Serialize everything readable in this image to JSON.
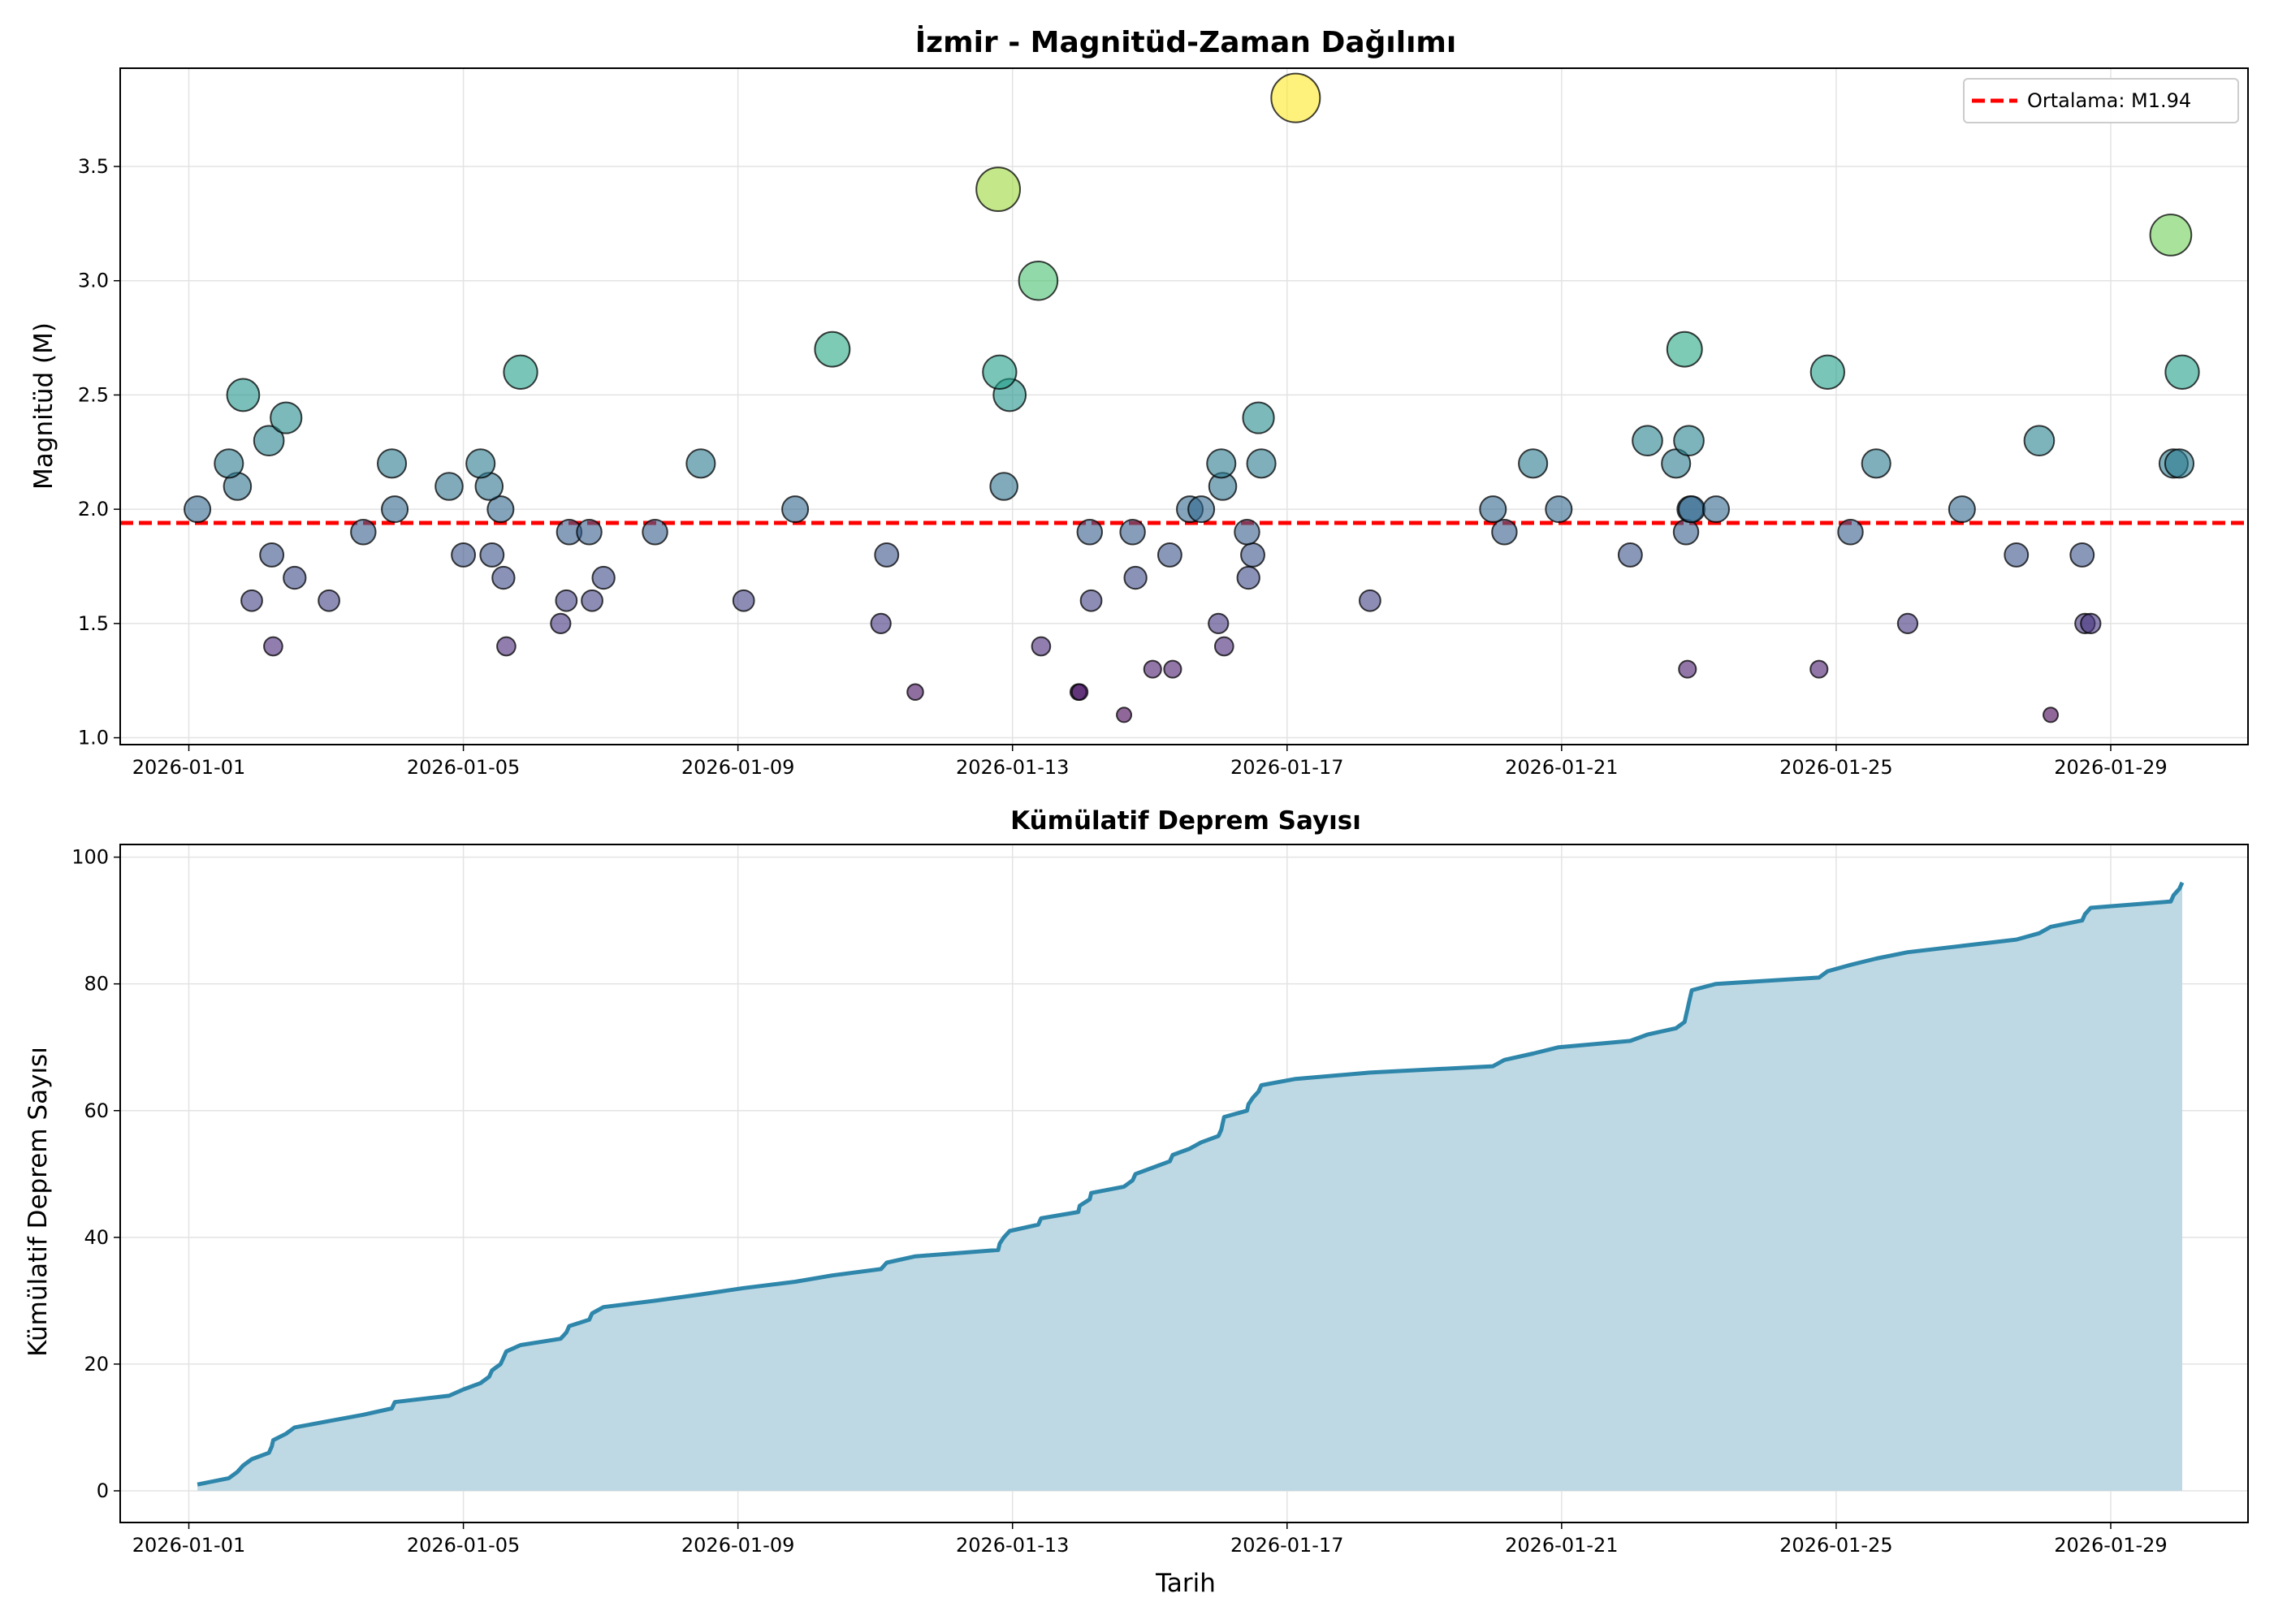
{
  "chart_data": [
    {
      "type": "scatter",
      "title": "İzmir - Magnitüd-Zaman Dağılımı",
      "xlabel": "",
      "ylabel": "Magnitüd (M)",
      "xlim": [
        "2025-12-31T00:00",
        "2026-01-31T00:00"
      ],
      "ylim": [
        0.97,
        3.93
      ],
      "xticks": [
        "2026-01-01",
        "2026-01-05",
        "2026-01-09",
        "2026-01-13",
        "2026-01-17",
        "2026-01-21",
        "2026-01-25",
        "2026-01-29"
      ],
      "yticks": [
        "1.0",
        "1.5",
        "2.0",
        "2.5",
        "3.0",
        "3.5"
      ],
      "grid": true,
      "legend": {
        "position": "top-right",
        "entries": [
          "Ortalama: M1.94"
        ]
      },
      "mean_line": {
        "value": 1.94,
        "color": "#ff0000",
        "style": "dashed"
      },
      "colormap": "viridis",
      "marker_size_encodes": "magnitude",
      "points": [
        {
          "t": "2026-01-01T03:00",
          "m": 2.0
        },
        {
          "t": "2026-01-01T14:00",
          "m": 2.2
        },
        {
          "t": "2026-01-01T17:00",
          "m": 2.1
        },
        {
          "t": "2026-01-01T19:00",
          "m": 2.5
        },
        {
          "t": "2026-01-01T22:00",
          "m": 1.6
        },
        {
          "t": "2026-01-02T04:00",
          "m": 2.3
        },
        {
          "t": "2026-01-02T05:00",
          "m": 1.8
        },
        {
          "t": "2026-01-02T05:30",
          "m": 1.4
        },
        {
          "t": "2026-01-02T10:00",
          "m": 2.4
        },
        {
          "t": "2026-01-02T13:00",
          "m": 1.7
        },
        {
          "t": "2026-01-03T01:00",
          "m": 1.6
        },
        {
          "t": "2026-01-03T13:00",
          "m": 1.9
        },
        {
          "t": "2026-01-03T23:00",
          "m": 2.2
        },
        {
          "t": "2026-01-04T00:00",
          "m": 2.0
        },
        {
          "t": "2026-01-04T19:00",
          "m": 2.1
        },
        {
          "t": "2026-01-05T00:00",
          "m": 1.8
        },
        {
          "t": "2026-01-05T06:00",
          "m": 2.2
        },
        {
          "t": "2026-01-05T09:00",
          "m": 2.1
        },
        {
          "t": "2026-01-05T10:00",
          "m": 1.8
        },
        {
          "t": "2026-01-05T13:00",
          "m": 2.0
        },
        {
          "t": "2026-01-05T14:00",
          "m": 1.7
        },
        {
          "t": "2026-01-05T15:00",
          "m": 1.4
        },
        {
          "t": "2026-01-05T20:00",
          "m": 2.6
        },
        {
          "t": "2026-01-06T10:00",
          "m": 1.5
        },
        {
          "t": "2026-01-06T12:00",
          "m": 1.6
        },
        {
          "t": "2026-01-06T13:00",
          "m": 1.9
        },
        {
          "t": "2026-01-06T20:00",
          "m": 1.9
        },
        {
          "t": "2026-01-06T21:00",
          "m": 1.6
        },
        {
          "t": "2026-01-07T01:00",
          "m": 1.7
        },
        {
          "t": "2026-01-07T19:00",
          "m": 1.9
        },
        {
          "t": "2026-01-08T11:00",
          "m": 2.2
        },
        {
          "t": "2026-01-09T02:00",
          "m": 1.6
        },
        {
          "t": "2026-01-09T20:00",
          "m": 2.0
        },
        {
          "t": "2026-01-10T09:00",
          "m": 2.7
        },
        {
          "t": "2026-01-11T02:00",
          "m": 1.5
        },
        {
          "t": "2026-01-11T04:00",
          "m": 1.8
        },
        {
          "t": "2026-01-11T14:00",
          "m": 1.2
        },
        {
          "t": "2026-01-12T19:00",
          "m": 3.4
        },
        {
          "t": "2026-01-12T19:30",
          "m": 2.6
        },
        {
          "t": "2026-01-12T21:00",
          "m": 2.1
        },
        {
          "t": "2026-01-12T23:00",
          "m": 2.5
        },
        {
          "t": "2026-01-13T09:00",
          "m": 3.0
        },
        {
          "t": "2026-01-13T10:00",
          "m": 1.4
        },
        {
          "t": "2026-01-13T23:00",
          "m": 1.2
        },
        {
          "t": "2026-01-13T23:30",
          "m": 1.2
        },
        {
          "t": "2026-01-14T03:00",
          "m": 1.9
        },
        {
          "t": "2026-01-14T03:30",
          "m": 1.6
        },
        {
          "t": "2026-01-14T15:00",
          "m": 1.1
        },
        {
          "t": "2026-01-14T18:00",
          "m": 1.9
        },
        {
          "t": "2026-01-14T19:00",
          "m": 1.7
        },
        {
          "t": "2026-01-15T01:00",
          "m": 1.3
        },
        {
          "t": "2026-01-15T07:00",
          "m": 1.8
        },
        {
          "t": "2026-01-15T08:00",
          "m": 1.3
        },
        {
          "t": "2026-01-15T14:00",
          "m": 2.0
        },
        {
          "t": "2026-01-15T18:00",
          "m": 2.0
        },
        {
          "t": "2026-01-16T00:00",
          "m": 1.5
        },
        {
          "t": "2026-01-16T01:00",
          "m": 2.2
        },
        {
          "t": "2026-01-16T01:30",
          "m": 2.1
        },
        {
          "t": "2026-01-16T02:00",
          "m": 1.4
        },
        {
          "t": "2026-01-16T10:00",
          "m": 1.9
        },
        {
          "t": "2026-01-16T10:30",
          "m": 1.7
        },
        {
          "t": "2026-01-16T12:00",
          "m": 1.8
        },
        {
          "t": "2026-01-16T14:00",
          "m": 2.4
        },
        {
          "t": "2026-01-16T15:00",
          "m": 2.2
        },
        {
          "t": "2026-01-17T03:00",
          "m": 3.8
        },
        {
          "t": "2026-01-18T05:00",
          "m": 1.6
        },
        {
          "t": "2026-01-20T00:00",
          "m": 2.0
        },
        {
          "t": "2026-01-20T04:00",
          "m": 1.9
        },
        {
          "t": "2026-01-20T14:00",
          "m": 2.2
        },
        {
          "t": "2026-01-20T23:00",
          "m": 2.0
        },
        {
          "t": "2026-01-22T00:00",
          "m": 1.8
        },
        {
          "t": "2026-01-22T06:00",
          "m": 2.3
        },
        {
          "t": "2026-01-22T16:00",
          "m": 2.2
        },
        {
          "t": "2026-01-22T19:00",
          "m": 2.7
        },
        {
          "t": "2026-01-22T19:30",
          "m": 1.9
        },
        {
          "t": "2026-01-22T20:00",
          "m": 1.3
        },
        {
          "t": "2026-01-22T20:30",
          "m": 2.3
        },
        {
          "t": "2026-01-22T21:00",
          "m": 2.0
        },
        {
          "t": "2026-01-22T21:30",
          "m": 2.0
        },
        {
          "t": "2026-01-23T06:00",
          "m": 2.0
        },
        {
          "t": "2026-01-24T18:00",
          "m": 1.3
        },
        {
          "t": "2026-01-24T21:00",
          "m": 2.6
        },
        {
          "t": "2026-01-25T05:00",
          "m": 1.9
        },
        {
          "t": "2026-01-25T14:00",
          "m": 2.2
        },
        {
          "t": "2026-01-26T01:00",
          "m": 1.5
        },
        {
          "t": "2026-01-26T20:00",
          "m": 2.0
        },
        {
          "t": "2026-01-27T15:00",
          "m": 1.8
        },
        {
          "t": "2026-01-27T23:00",
          "m": 2.3
        },
        {
          "t": "2026-01-28T03:00",
          "m": 1.1
        },
        {
          "t": "2026-01-28T14:00",
          "m": 1.8
        },
        {
          "t": "2026-01-28T15:00",
          "m": 1.5
        },
        {
          "t": "2026-01-28T17:00",
          "m": 1.5
        },
        {
          "t": "2026-01-29T21:00",
          "m": 3.2
        },
        {
          "t": "2026-01-29T22:00",
          "m": 2.2
        },
        {
          "t": "2026-01-30T00:00",
          "m": 2.2
        },
        {
          "t": "2026-01-30T01:00",
          "m": 2.6
        }
      ]
    },
    {
      "type": "area",
      "title": "Kümülatif Deprem Sayısı",
      "xlabel": "Tarih",
      "ylabel": "Kümülatif Deprem Sayısı",
      "xlim": [
        "2025-12-31T00:00",
        "2026-01-31T00:00"
      ],
      "ylim": [
        -5,
        102
      ],
      "xticks": [
        "2026-01-01",
        "2026-01-05",
        "2026-01-09",
        "2026-01-13",
        "2026-01-17",
        "2026-01-21",
        "2026-01-25",
        "2026-01-29"
      ],
      "yticks": [
        "0",
        "20",
        "40",
        "60",
        "80",
        "100"
      ],
      "grid": true,
      "line_color": "#2e86ab",
      "fill_color": "#bfd9e4"
    }
  ]
}
